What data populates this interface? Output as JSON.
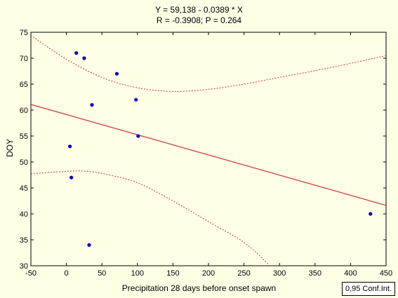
{
  "chart_data": {
    "type": "scatter",
    "title": "Y = 59,138 - 0.0389  * X",
    "subtitle": "R = -0.3908; P = 0.264",
    "xlabel": "Precipitation 28 days before onset spawn",
    "ylabel": "DOY",
    "xlim": [
      -50,
      450
    ],
    "ylim": [
      30,
      75
    ],
    "xticks": [
      -50,
      0,
      50,
      100,
      150,
      200,
      250,
      300,
      350,
      400,
      450
    ],
    "yticks": [
      30,
      35,
      40,
      45,
      50,
      55,
      60,
      65,
      70,
      75
    ],
    "grid": false,
    "points": [
      {
        "x": 14,
        "y": 71
      },
      {
        "x": 25,
        "y": 70
      },
      {
        "x": 71,
        "y": 67
      },
      {
        "x": 98,
        "y": 62
      },
      {
        "x": 36,
        "y": 61
      },
      {
        "x": 101,
        "y": 55
      },
      {
        "x": 5,
        "y": 53
      },
      {
        "x": 7,
        "y": 47
      },
      {
        "x": 32,
        "y": 34
      },
      {
        "x": 428,
        "y": 40
      }
    ],
    "regression": {
      "intercept": 59.138,
      "slope": -0.0389
    },
    "confidence_band": {
      "label": "0,95 Conf.Int.",
      "upper": [
        {
          "x": -50,
          "y": 74.4
        },
        {
          "x": 0,
          "y": 69.8
        },
        {
          "x": 50,
          "y": 66.3
        },
        {
          "x": 100,
          "y": 64.3
        },
        {
          "x": 150,
          "y": 63.6
        },
        {
          "x": 200,
          "y": 64.0
        },
        {
          "x": 250,
          "y": 65.0
        },
        {
          "x": 300,
          "y": 66.3
        },
        {
          "x": 350,
          "y": 67.6
        },
        {
          "x": 400,
          "y": 69.0
        },
        {
          "x": 450,
          "y": 70.5
        }
      ],
      "lower": [
        {
          "x": -50,
          "y": 47.7
        },
        {
          "x": 0,
          "y": 48.2
        },
        {
          "x": 30,
          "y": 48.2
        },
        {
          "x": 60,
          "y": 47.5
        },
        {
          "x": 100,
          "y": 46.0
        },
        {
          "x": 150,
          "y": 42.5
        },
        {
          "x": 200,
          "y": 38.5
        },
        {
          "x": 250,
          "y": 34.5
        },
        {
          "x": 285,
          "y": 30.2
        }
      ]
    },
    "colors": {
      "points": "#0000cc",
      "line": "#cc3333",
      "background": "#ffffe6"
    }
  }
}
